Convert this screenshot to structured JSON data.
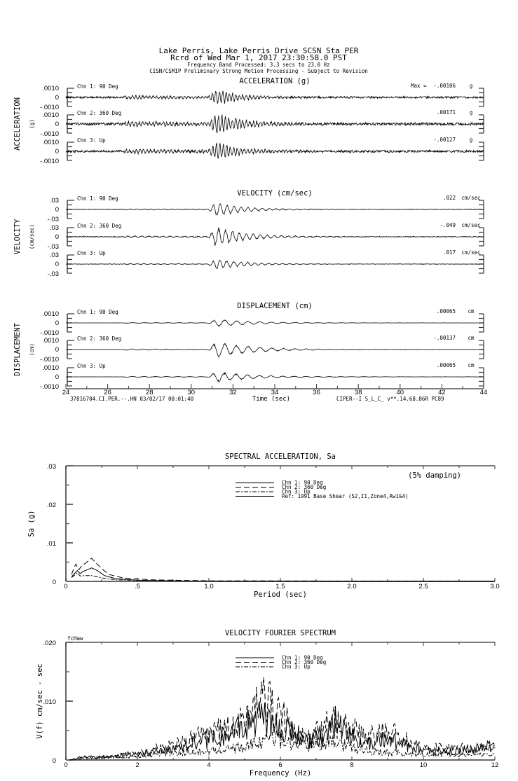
{
  "header": {
    "line1": "Lake Perris, Lake Perris Drive     SCSN Sta PER",
    "line2": "Rcrd of Wed Mar  1, 2017 23:30:58.0 PST",
    "line3": "Frequency Band Processed: 3.3 secs to 23.0 Hz",
    "line4": "CISN/CSMIP Preliminary Strong Motion Processing - Subject to Revision"
  },
  "chart_data": [
    {
      "type": "line",
      "title": "ACCELERATION (g)",
      "ylabel": "ACCELERATION",
      "yunit": "(g)",
      "xlim": [
        24,
        44
      ],
      "max_label": "Max =",
      "ytick_labels": [
        ".0010",
        "0",
        "-.0010"
      ],
      "channels": [
        {
          "name": "Chn 1: 90 Deg",
          "max": "-.00106",
          "unit": "g"
        },
        {
          "name": "Chn 2: 360 Deg",
          "max": ".00171",
          "unit": "g"
        },
        {
          "name": "Chn 3: Up",
          "max": "-.00127",
          "unit": "g"
        }
      ]
    },
    {
      "type": "line",
      "title": "VELOCITY (cm/sec)",
      "ylabel": "VELOCITY",
      "yunit": "(cm/sec)",
      "xlim": [
        24,
        44
      ],
      "ytick_labels": [
        ".03",
        "0",
        "-.03"
      ],
      "channels": [
        {
          "name": "Chn 1: 90 Deg",
          "max": ".022",
          "unit": "cm/sec"
        },
        {
          "name": "Chn 2: 360 Deg",
          "max": "-.049",
          "unit": "cm/sec"
        },
        {
          "name": "Chn 3: Up",
          "max": ".017",
          "unit": "cm/sec"
        }
      ]
    },
    {
      "type": "line",
      "title": "DISPLACEMENT (cm)",
      "ylabel": "DISPLACEMENT",
      "yunit": "(cm)",
      "xlim": [
        24,
        44
      ],
      "ytick_labels": [
        ".0010",
        "0",
        "-.0010"
      ],
      "xtick_labels": [
        "24",
        "26",
        "28",
        "30",
        "32",
        "34",
        "36",
        "38",
        "40",
        "42",
        "44"
      ],
      "xlabel": "Time (sec)",
      "channels": [
        {
          "name": "Chn 1: 90 Deg",
          "max": ".00065",
          "unit": "cm"
        },
        {
          "name": "Chn 2: 360 Deg",
          "max": "-.00137",
          "unit": "cm"
        },
        {
          "name": "Chn 3: Up",
          "max": ".00065",
          "unit": "cm"
        }
      ]
    },
    {
      "type": "line",
      "title": "SPECTRAL ACCELERATION, Sa",
      "xlabel": "Period (sec)",
      "ylabel": "Sa (g)",
      "note": "(5% damping)",
      "xlim": [
        0,
        3
      ],
      "ylim": [
        0,
        0.03
      ],
      "xtick_labels": [
        {
          "v": 0,
          "t": "0"
        },
        {
          "v": 0.5,
          "t": ".5"
        },
        {
          "v": 1,
          "t": "1.0"
        },
        {
          "v": 1.5,
          "t": "1.5"
        },
        {
          "v": 2,
          "t": "2.0"
        },
        {
          "v": 2.5,
          "t": "2.5"
        },
        {
          "v": 3,
          "t": "3.0"
        }
      ],
      "ytick_labels": [
        {
          "v": 0.03,
          "t": ".03"
        },
        {
          "v": 0.02,
          "t": ".02"
        },
        {
          "v": 0.01,
          "t": ".01"
        },
        {
          "v": 0,
          "t": "0"
        }
      ],
      "series": [
        {
          "name": "Chn 1: 90 Deg",
          "style": "solid",
          "points": [
            [
              0.04,
              0.0012
            ],
            [
              0.06,
              0.002
            ],
            [
              0.08,
              0.0028
            ],
            [
              0.1,
              0.002
            ],
            [
              0.12,
              0.0026
            ],
            [
              0.15,
              0.003
            ],
            [
              0.18,
              0.0035
            ],
            [
              0.22,
              0.0028
            ],
            [
              0.27,
              0.0015
            ],
            [
              0.35,
              0.0007
            ],
            [
              0.5,
              0.0003
            ],
            [
              0.8,
              0.0001
            ],
            [
              1.5,
              3e-05
            ],
            [
              3,
              1e-05
            ]
          ]
        },
        {
          "name": "Chn 2: 360 Deg",
          "style": "dashed",
          "points": [
            [
              0.04,
              0.0018
            ],
            [
              0.06,
              0.0038
            ],
            [
              0.07,
              0.0045
            ],
            [
              0.09,
              0.003
            ],
            [
              0.11,
              0.004
            ],
            [
              0.14,
              0.0048
            ],
            [
              0.18,
              0.006
            ],
            [
              0.21,
              0.0048
            ],
            [
              0.26,
              0.003
            ],
            [
              0.3,
              0.0018
            ],
            [
              0.4,
              0.0009
            ],
            [
              0.6,
              0.0004
            ],
            [
              1,
              0.00015
            ],
            [
              3,
              2e-05
            ]
          ]
        },
        {
          "name": "Chn 3: Up",
          "style": "dashdot",
          "points": [
            [
              0.04,
              0.001
            ],
            [
              0.06,
              0.0016
            ],
            [
              0.08,
              0.0022
            ],
            [
              0.1,
              0.0014
            ],
            [
              0.13,
              0.0015
            ],
            [
              0.18,
              0.0015
            ],
            [
              0.25,
              0.0009
            ],
            [
              0.35,
              0.0004
            ],
            [
              0.6,
              0.0002
            ],
            [
              1,
              5e-05
            ],
            [
              3,
              0
            ]
          ]
        },
        {
          "name": "Ref: 1991 Base Shear (S2,I1,Zone4,Rw1&4)",
          "style": "solid",
          "points": []
        }
      ]
    },
    {
      "type": "line",
      "title": "VELOCITY FOURIER SPECTRUM",
      "xlabel": "Frequency (Hz)",
      "ylabel": "V(f)   cm/sec - sec",
      "corner_label": "fcHaw",
      "xlim": [
        0,
        12
      ],
      "ylim": [
        0,
        0.02
      ],
      "xtick_labels": [
        {
          "v": 0,
          "t": "0"
        },
        {
          "v": 2,
          "t": "2"
        },
        {
          "v": 4,
          "t": "4"
        },
        {
          "v": 6,
          "t": "6"
        },
        {
          "v": 8,
          "t": "8"
        },
        {
          "v": 10,
          "t": "10"
        },
        {
          "v": 12,
          "t": "12"
        }
      ],
      "ytick_labels": [
        {
          "v": 0.02,
          "t": ".020"
        },
        {
          "v": 0.01,
          "t": ".010"
        },
        {
          "v": 0,
          "t": "0"
        }
      ],
      "series": [
        {
          "name": "Chn 1: 90 Deg",
          "style": "solid",
          "points": [
            [
              0.1,
              0
            ],
            [
              0.5,
              0.0006
            ],
            [
              1,
              0.0005
            ],
            [
              2,
              0.001
            ],
            [
              3,
              0.0018
            ],
            [
              4,
              0.0035
            ],
            [
              4.5,
              0.004
            ],
            [
              5,
              0.0058
            ],
            [
              5.5,
              0.0075
            ],
            [
              6,
              0.0055
            ],
            [
              6.3,
              0.005
            ],
            [
              6.8,
              0.003
            ],
            [
              7.3,
              0.0045
            ],
            [
              7.6,
              0.007
            ],
            [
              8,
              0.004
            ],
            [
              8.5,
              0.003
            ],
            [
              9,
              0.0035
            ],
            [
              10,
              0.0015
            ],
            [
              11,
              0.0015
            ],
            [
              11.5,
              0.002
            ],
            [
              12,
              0.0025
            ]
          ]
        },
        {
          "name": "Chn 2: 360 Deg",
          "style": "dashed",
          "points": [
            [
              0.1,
              0
            ],
            [
              0.5,
              0.0005
            ],
            [
              1,
              0.0005
            ],
            [
              2,
              0.0012
            ],
            [
              3,
              0.0025
            ],
            [
              4,
              0.0045
            ],
            [
              4.5,
              0.0055
            ],
            [
              5,
              0.0068
            ],
            [
              5.3,
              0.009
            ],
            [
              5.5,
              0.0125
            ],
            [
              5.8,
              0.0095
            ],
            [
              6.1,
              0.0075
            ],
            [
              6.5,
              0.004
            ],
            [
              7,
              0.0045
            ],
            [
              7.5,
              0.0068
            ],
            [
              8,
              0.005
            ],
            [
              8.5,
              0.0042
            ],
            [
              9,
              0.005
            ],
            [
              10,
              0.002
            ],
            [
              11,
              0.002
            ],
            [
              12,
              0.002
            ]
          ]
        },
        {
          "name": "Chn 3: Up",
          "style": "dashdot",
          "points": [
            [
              0.1,
              0
            ],
            [
              1,
              0.0003
            ],
            [
              2,
              0.0006
            ],
            [
              3,
              0.0012
            ],
            [
              4,
              0.0015
            ],
            [
              5,
              0.0022
            ],
            [
              5.8,
              0.004
            ],
            [
              6.5,
              0.0025
            ],
            [
              7.5,
              0.003
            ],
            [
              8.5,
              0.0015
            ],
            [
              10,
              0.001
            ],
            [
              12,
              0.0008
            ]
          ]
        }
      ]
    }
  ],
  "footer": {
    "record_id": "37816704.CI.PER.--.HN 03/02/17 00:01:40",
    "processing_id": "CIPER--I  S_L_C_  v**.14.68.86R PC89"
  }
}
